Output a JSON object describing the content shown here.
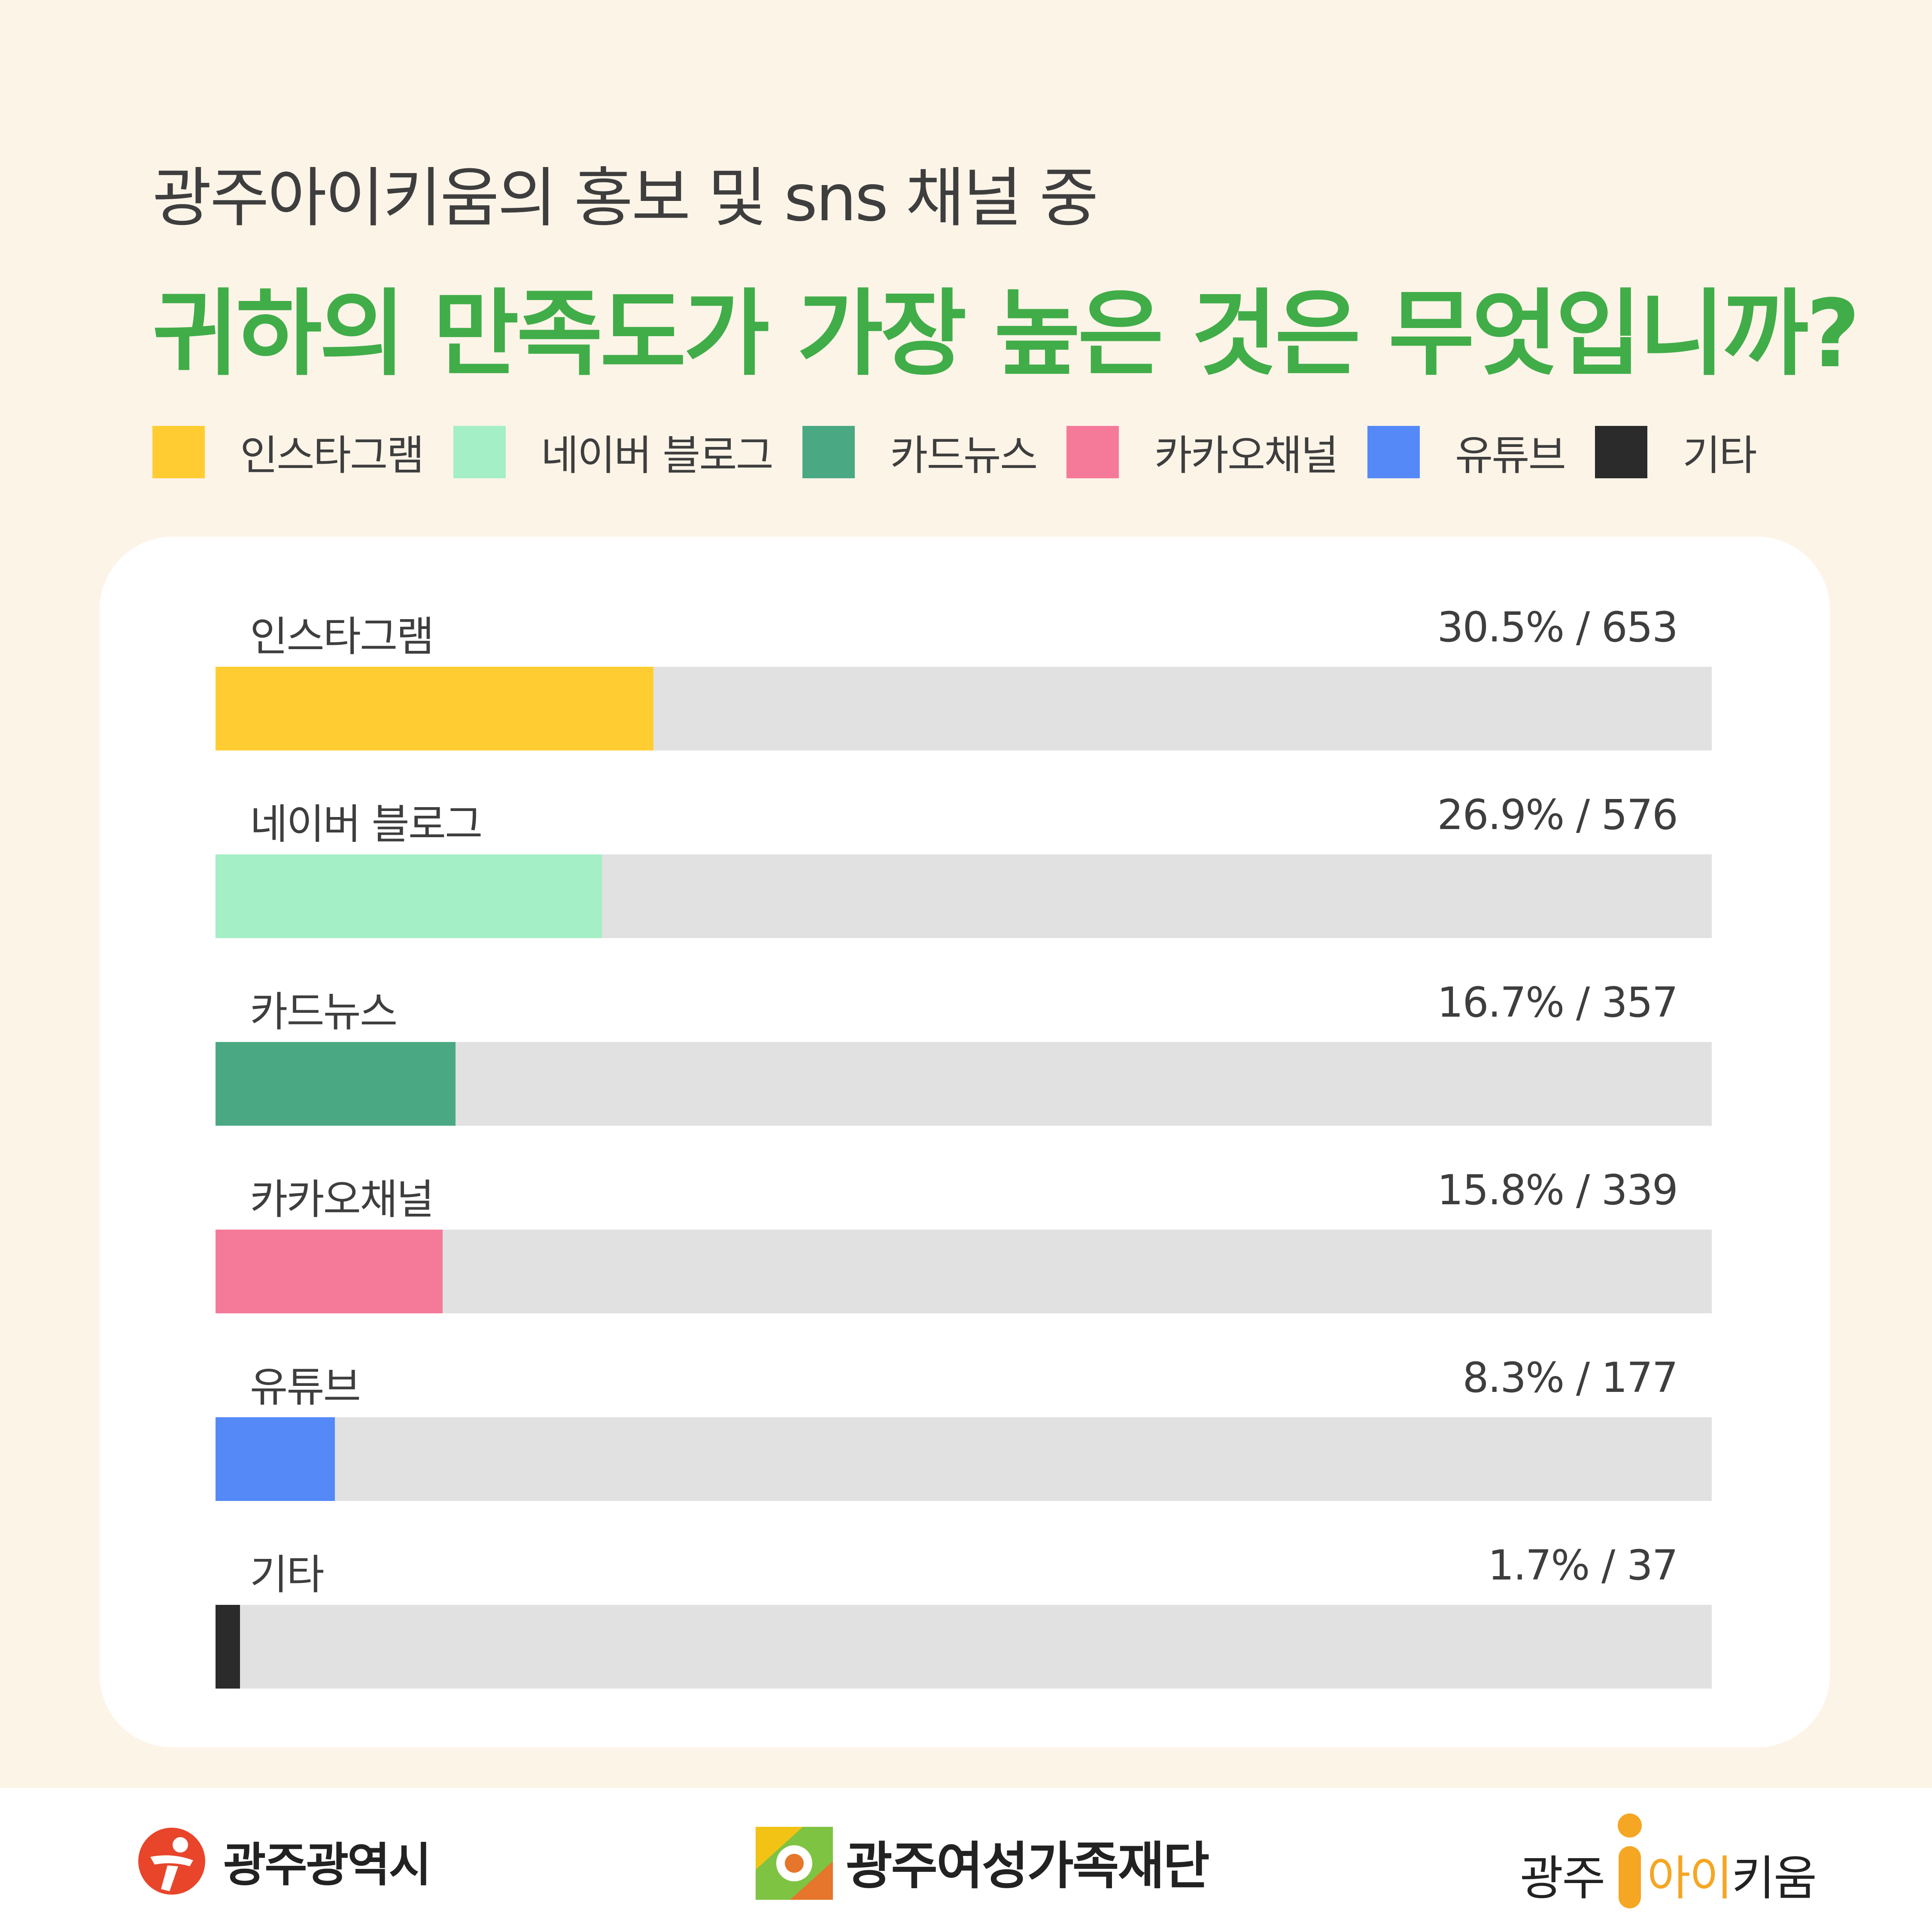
{
  "header": {
    "subtitle": "광주아이키움의 홍보 및 sns 채널 중",
    "title": "귀하의 만족도가 가장 높은 것은 무엇입니까?"
  },
  "chart_data": {
    "type": "bar",
    "orientation": "horizontal",
    "categories": [
      "인스타그램",
      "네이버 블로그",
      "카드뉴스",
      "카카오채널",
      "유튜브",
      "기타"
    ],
    "values": [
      30.5,
      26.9,
      16.7,
      15.8,
      8.3,
      1.7
    ],
    "counts": [
      653,
      576,
      357,
      339,
      177,
      37
    ],
    "value_labels": [
      "30.5% / 653",
      "26.9% / 576",
      "16.7% / 357",
      "15.8% / 339",
      "8.3% / 177",
      "1.7% / 37"
    ],
    "colors": [
      "#ffcd31",
      "#a4efc6",
      "#4aa983",
      "#f57a9a",
      "#5589f8",
      "#2b2b2b"
    ],
    "track_color": "#e1e1e1",
    "legend_position": "top"
  },
  "footer": {
    "logo_city": "광주광역시",
    "logo_foundation": "광주여성가족재단",
    "logo_brand_prefix": "광주",
    "logo_brand_mid": "아이",
    "logo_brand_suffix": "키움"
  }
}
